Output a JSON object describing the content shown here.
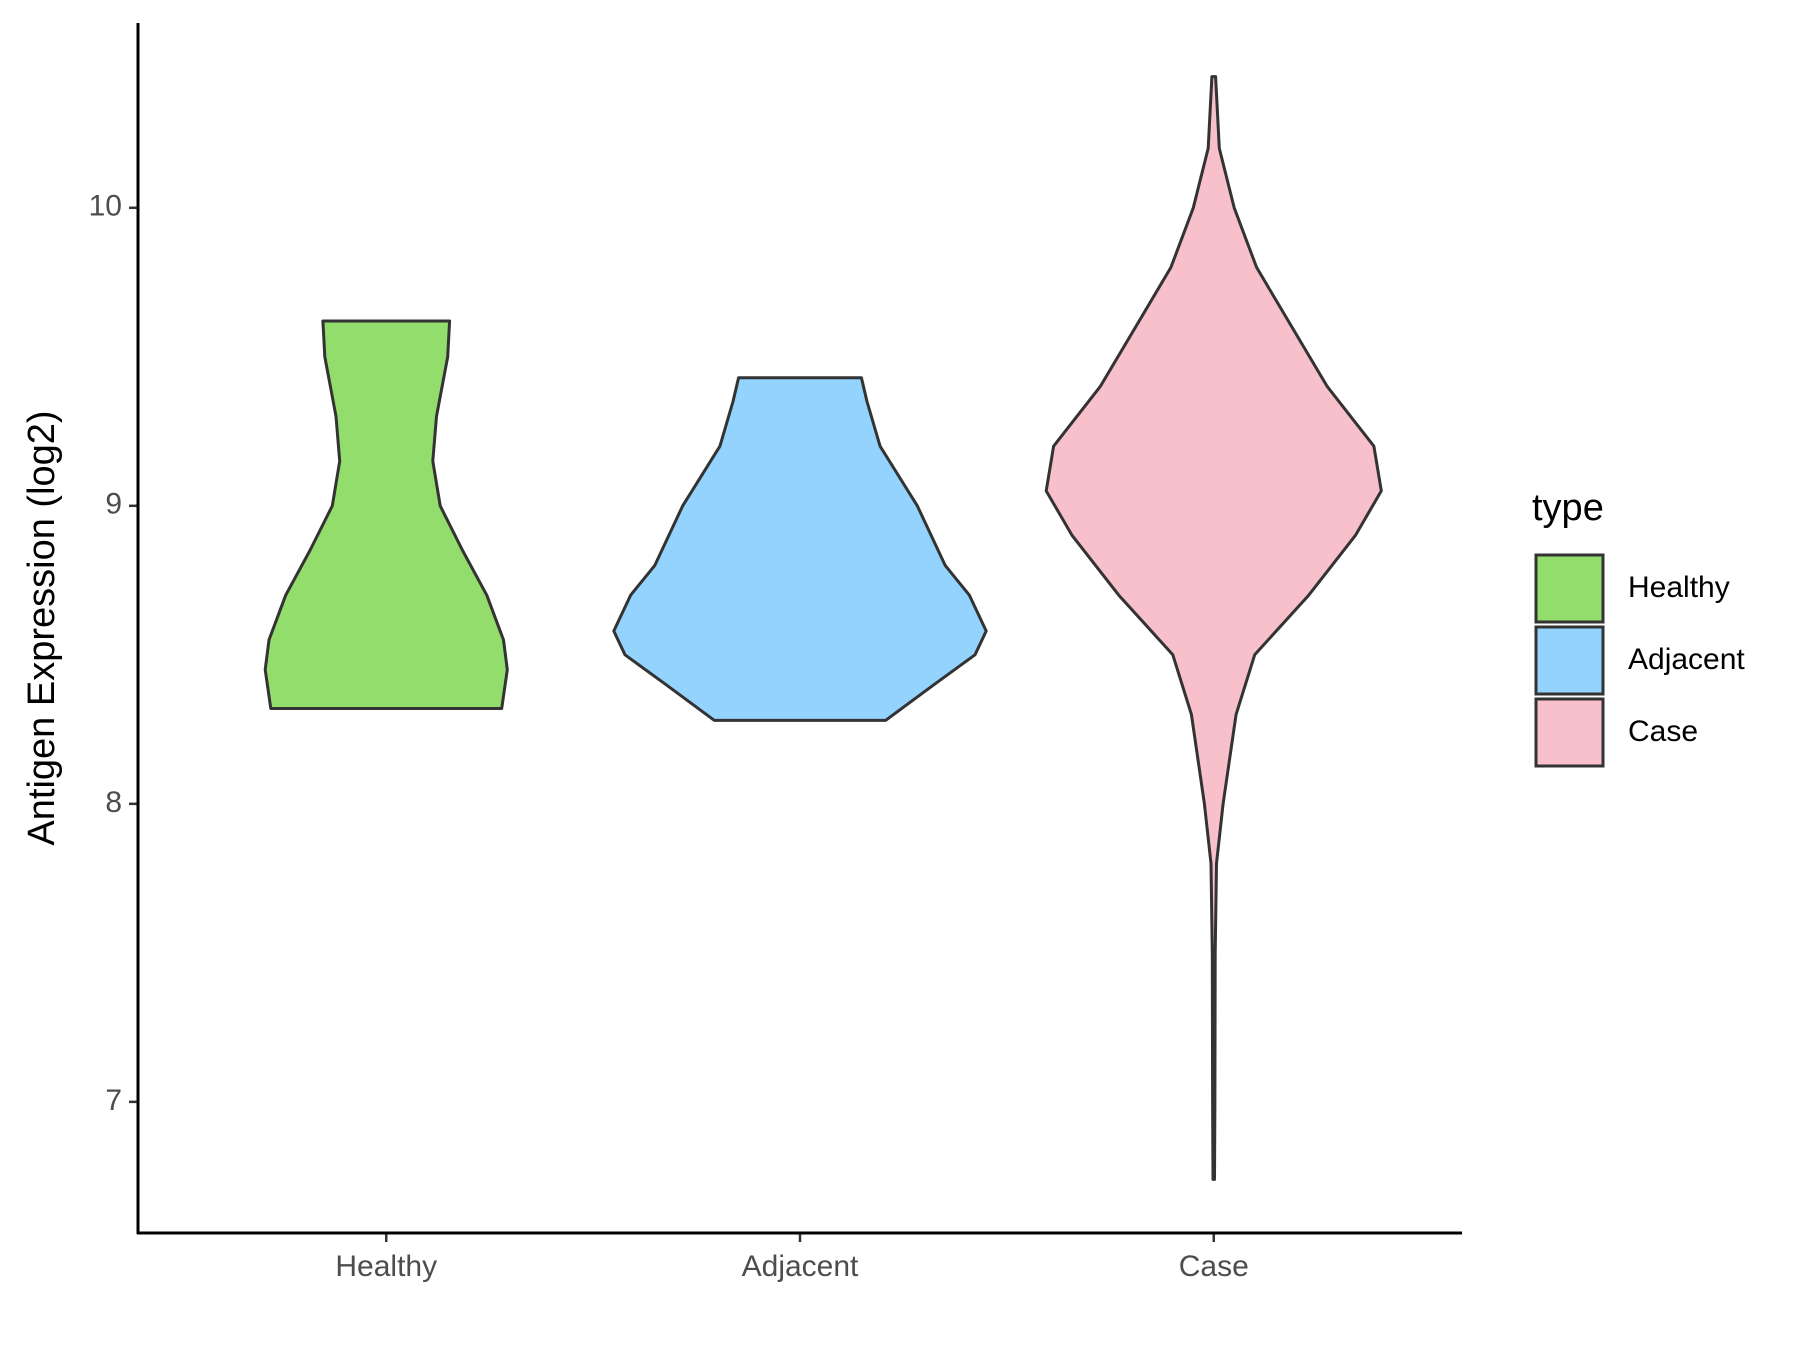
{
  "chart_data": {
    "type": "violin",
    "y_label": "Antigen Expression (log2)",
    "categories": [
      "Healthy",
      "Adjacent",
      "Case"
    ],
    "legend_title": "type",
    "legend_position": "right",
    "ylim": [
      6.56,
      10.62
    ],
    "yticks": [
      7,
      8,
      9,
      10
    ],
    "series": [
      {
        "name": "Healthy",
        "color": "#92dd6b",
        "y": [
          8.32,
          8.45,
          8.55,
          8.7,
          8.85,
          9.0,
          9.15,
          9.3,
          9.5,
          9.62
        ],
        "density": [
          0.62,
          0.65,
          0.63,
          0.54,
          0.41,
          0.29,
          0.25,
          0.27,
          0.33,
          0.34
        ]
      },
      {
        "name": "Adjacent",
        "color": "#93d3fd",
        "y": [
          8.28,
          8.4,
          8.5,
          8.58,
          8.7,
          8.8,
          9.0,
          9.2,
          9.35,
          9.43
        ],
        "density": [
          0.46,
          0.72,
          0.94,
          1.0,
          0.91,
          0.78,
          0.63,
          0.43,
          0.36,
          0.33
        ]
      },
      {
        "name": "Case",
        "color": "#f7c0cb",
        "y": [
          6.74,
          7.0,
          7.5,
          7.8,
          8.0,
          8.3,
          8.5,
          8.7,
          8.9,
          9.05,
          9.2,
          9.4,
          9.6,
          9.8,
          10.0,
          10.2,
          10.44
        ],
        "density": [
          0.004,
          0.006,
          0.008,
          0.015,
          0.05,
          0.12,
          0.22,
          0.51,
          0.76,
          0.9,
          0.86,
          0.61,
          0.42,
          0.23,
          0.11,
          0.03,
          0.01
        ]
      }
    ]
  }
}
